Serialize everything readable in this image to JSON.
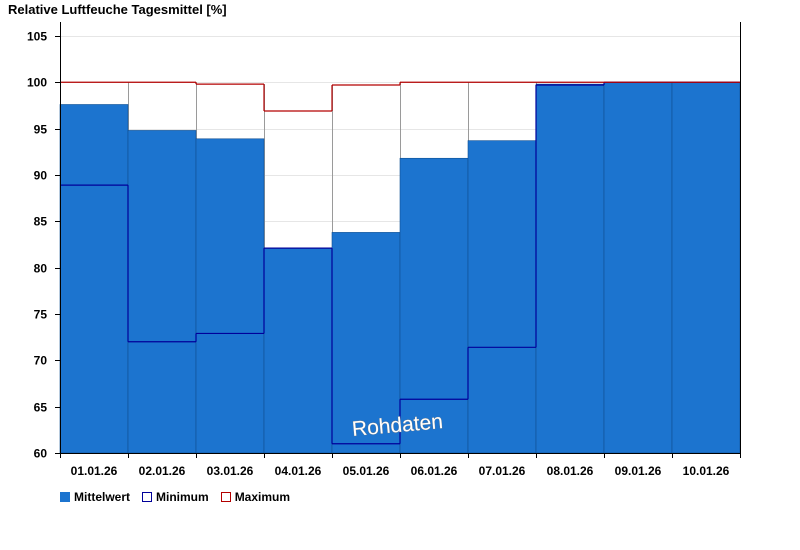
{
  "chart_data": {
    "type": "bar",
    "title": "Relative Luftfeuche Tagesmittel [%]",
    "categories": [
      "01.01.26",
      "02.01.26",
      "03.01.26",
      "04.01.26",
      "05.01.26",
      "06.01.26",
      "07.01.26",
      "08.01.26",
      "09.01.26",
      "10.01.26"
    ],
    "series": [
      {
        "name": "Mittelwert",
        "values": [
          97.6,
          94.8,
          93.9,
          82.1,
          83.8,
          91.8,
          93.7,
          99.8,
          100,
          100
        ],
        "color": "#1c74cf"
      },
      {
        "name": "Minimum",
        "values": [
          88.9,
          72.0,
          72.9,
          82.1,
          61.0,
          65.8,
          71.4,
          99.7,
          100,
          100
        ],
        "color": "#00009a"
      },
      {
        "name": "Maximum",
        "values": [
          100,
          100,
          99.8,
          96.9,
          99.7,
          100,
          100,
          100,
          100,
          100
        ],
        "color": "#b30000"
      }
    ],
    "y_ticks": [
      "60",
      "65",
      "70",
      "75",
      "80",
      "85",
      "90",
      "95",
      "100",
      "105"
    ],
    "ylim": [
      60,
      106.5
    ],
    "grid": true,
    "legend_position": "bottom-left",
    "watermark": "Rohdaten"
  }
}
